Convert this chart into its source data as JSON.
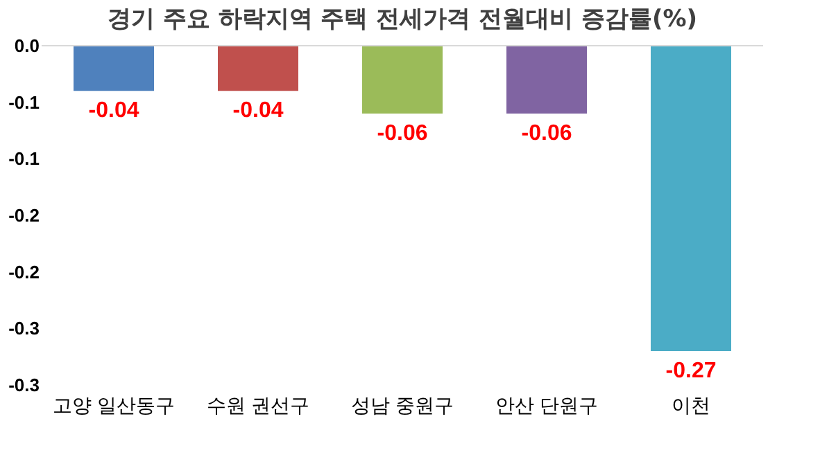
{
  "chart_data": {
    "type": "bar",
    "title": "경기 주요 하락지역 주택 전세가격 전월대비 증감률(%)",
    "categories": [
      "고양 일산동구",
      "수원 권선구",
      "성남 중원구",
      "안산 단원구",
      "이천"
    ],
    "values": [
      -0.04,
      -0.04,
      -0.06,
      -0.06,
      -0.27
    ],
    "colors": [
      "#4f81bd",
      "#c0504d",
      "#9bbb59",
      "#8064a2",
      "#4bacc6"
    ],
    "ylim": [
      -0.3,
      0.0
    ],
    "yticks": [
      {
        "value": 0.0,
        "label": "0.0"
      },
      {
        "value": -0.05,
        "label": "-0.1"
      },
      {
        "value": -0.1,
        "label": "-0.1"
      },
      {
        "value": -0.15,
        "label": "-0.2"
      },
      {
        "value": -0.2,
        "label": "-0.2"
      },
      {
        "value": -0.25,
        "label": "-0.3"
      },
      {
        "value": -0.3,
        "label": "-0.3"
      }
    ],
    "data_labels": true,
    "grid": false
  }
}
